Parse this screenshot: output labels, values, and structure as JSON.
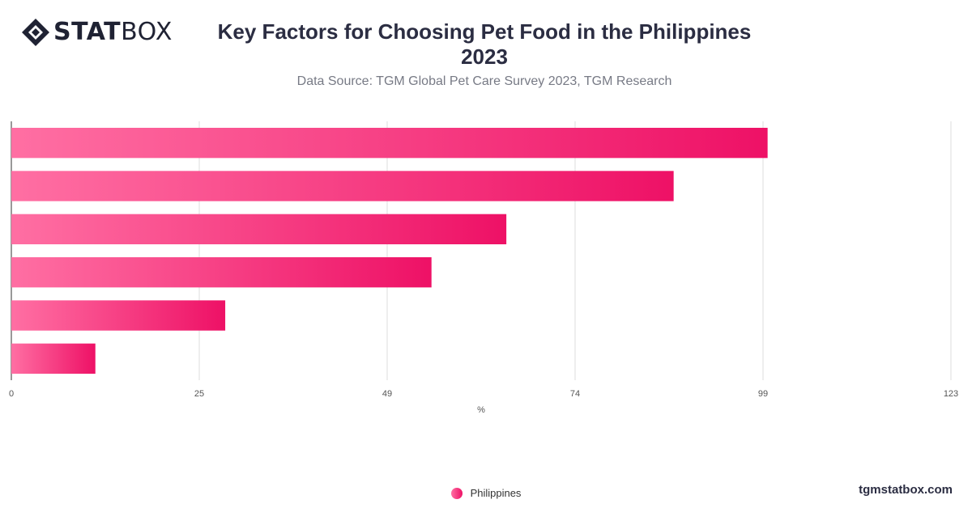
{
  "brand": {
    "name_bold": "STAT",
    "name_light": "BOX",
    "logo_icon": "statbox-diamond-icon",
    "watermark": "tgmstatbox.com"
  },
  "header": {
    "title_line1": "Key Factors for Choosing Pet Food in the Philippines",
    "title_line2": "2023",
    "subtitle": "Data Source: TGM Global Pet Care Survey 2023, TGM Research"
  },
  "colors": {
    "bar_start": "#ff6fa3",
    "bar_end": "#ee1166",
    "grid": "#dcdcdc",
    "axis": "#333333"
  },
  "chart_data": {
    "type": "bar",
    "orientation": "horizontal",
    "title": "Key Factors for Choosing Pet Food in the Philippines 2023",
    "subtitle": "Data Source: TGM Global Pet Care Survey 2023, TGM Research",
    "xlabel": "%",
    "ylabel": "",
    "xlim": [
      0,
      123
    ],
    "x_ticks": [
      "0",
      "25",
      "49",
      "74",
      "99",
      "123"
    ],
    "x_tick_values": [
      0,
      24.6,
      49.2,
      73.8,
      98.4,
      123
    ],
    "categories": [
      "",
      "",
      "",
      "",
      "",
      ""
    ],
    "series": [
      {
        "name": "Philippines",
        "values": [
          99,
          86.7,
          64.8,
          55,
          28,
          11
        ]
      }
    ],
    "grid": true,
    "legend": "bottom-center"
  }
}
